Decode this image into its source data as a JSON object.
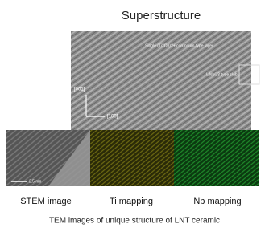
{
  "title": "Superstructure",
  "main_image": {
    "annotations": [
      "Single (Ti2O3)2+ corundum-type layer",
      "LiNbO3-type slab",
      "[001]",
      "[100]"
    ]
  },
  "panels": [
    {
      "label": "STEM image",
      "scale_bar": "2.5 nm"
    },
    {
      "label": "Ti mapping"
    },
    {
      "label": "Nb mapping"
    }
  ],
  "caption": "TEM images of unique structure of LNT ceramic"
}
